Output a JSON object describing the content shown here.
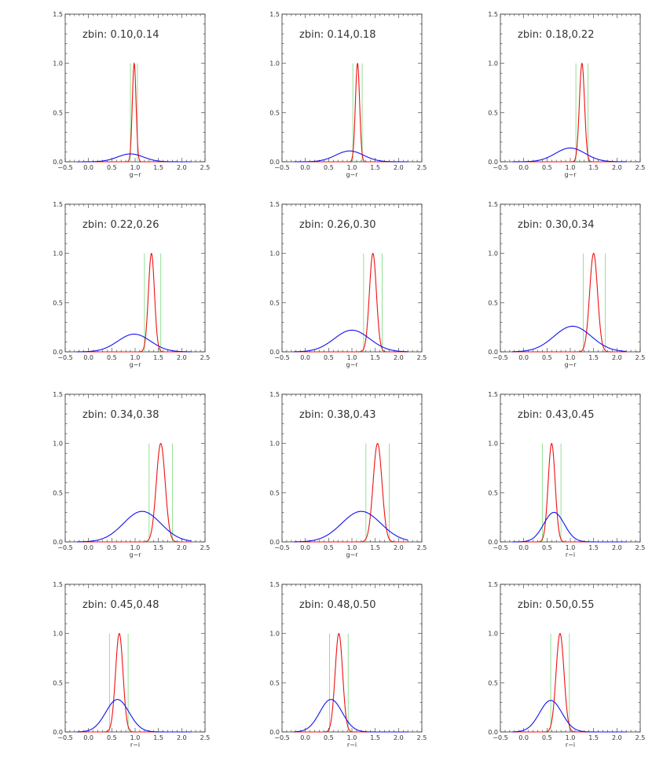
{
  "chart_data": [
    {
      "type": "line",
      "title": "zbin: 0.10,0.14",
      "xlabel": "g−r",
      "xlim": [
        -0.5,
        2.5
      ],
      "ylim": [
        0,
        1.5
      ],
      "x_ticks": [
        "−0.5",
        "0.0",
        "0.5",
        "1.0",
        "1.5",
        "2.0",
        "2.5"
      ],
      "y_ticks": [
        "0.0",
        "0.5",
        "1.0",
        "1.5"
      ],
      "series": [
        {
          "color": "#ee1111",
          "kind": "gaussian",
          "mean": 0.98,
          "sigma": 0.04,
          "peak": 1.0
        },
        {
          "color": "#1111ee",
          "kind": "gaussian",
          "mean": 0.9,
          "sigma": 0.28,
          "peak": 0.08
        }
      ],
      "vlines": {
        "color": "#88dd88",
        "x": [
          0.9,
          1.05
        ]
      }
    },
    {
      "type": "line",
      "title": "zbin: 0.14,0.18",
      "xlabel": "g−r",
      "xlim": [
        -0.5,
        2.5
      ],
      "ylim": [
        0,
        1.5
      ],
      "x_ticks": [
        "−0.5",
        "0.0",
        "0.5",
        "1.0",
        "1.5",
        "2.0",
        "2.5"
      ],
      "y_ticks": [
        "0.0",
        "0.5",
        "1.0",
        "1.5"
      ],
      "series": [
        {
          "color": "#ee1111",
          "kind": "gaussian",
          "mean": 1.12,
          "sigma": 0.045,
          "peak": 1.0
        },
        {
          "color": "#1111ee",
          "kind": "gaussian",
          "mean": 0.95,
          "sigma": 0.3,
          "peak": 0.11
        }
      ],
      "vlines": {
        "color": "#88dd88",
        "x": [
          1.02,
          1.22
        ]
      }
    },
    {
      "type": "line",
      "title": "zbin: 0.18,0.22",
      "xlabel": "g−r",
      "xlim": [
        -0.5,
        2.5
      ],
      "ylim": [
        0,
        1.5
      ],
      "x_ticks": [
        "−0.5",
        "0.0",
        "0.5",
        "1.0",
        "1.5",
        "2.0",
        "2.5"
      ],
      "y_ticks": [
        "0.0",
        "0.5",
        "1.0",
        "1.5"
      ],
      "series": [
        {
          "color": "#ee1111",
          "kind": "gaussian",
          "mean": 1.25,
          "sigma": 0.055,
          "peak": 1.0
        },
        {
          "color": "#1111ee",
          "kind": "gaussian",
          "mean": 1.0,
          "sigma": 0.32,
          "peak": 0.14
        }
      ],
      "vlines": {
        "color": "#88dd88",
        "x": [
          1.12,
          1.38
        ]
      }
    },
    {
      "type": "line",
      "title": "zbin: 0.22,0.26",
      "xlabel": "g−r",
      "xlim": [
        -0.5,
        2.5
      ],
      "ylim": [
        0,
        1.5
      ],
      "x_ticks": [
        "−0.5",
        "0.0",
        "0.5",
        "1.0",
        "1.5",
        "2.0",
        "2.5"
      ],
      "y_ticks": [
        "0.0",
        "0.5",
        "1.0",
        "1.5"
      ],
      "series": [
        {
          "color": "#ee1111",
          "kind": "gaussian",
          "mean": 1.35,
          "sigma": 0.065,
          "peak": 1.0
        },
        {
          "color": "#1111ee",
          "kind": "gaussian",
          "mean": 0.98,
          "sigma": 0.35,
          "peak": 0.18
        }
      ],
      "vlines": {
        "color": "#88dd88",
        "x": [
          1.2,
          1.55
        ]
      }
    },
    {
      "type": "line",
      "title": "zbin: 0.26,0.30",
      "xlabel": "g−r",
      "xlim": [
        -0.5,
        2.5
      ],
      "ylim": [
        0,
        1.5
      ],
      "x_ticks": [
        "−0.5",
        "0.0",
        "0.5",
        "1.0",
        "1.5",
        "2.0",
        "2.5"
      ],
      "y_ticks": [
        "0.0",
        "0.5",
        "1.0",
        "1.5"
      ],
      "series": [
        {
          "color": "#ee1111",
          "kind": "gaussian",
          "mean": 1.45,
          "sigma": 0.075,
          "peak": 1.0
        },
        {
          "color": "#1111ee",
          "kind": "gaussian",
          "mean": 1.0,
          "sigma": 0.38,
          "peak": 0.22
        }
      ],
      "vlines": {
        "color": "#88dd88",
        "x": [
          1.25,
          1.65
        ]
      }
    },
    {
      "type": "line",
      "title": "zbin: 0.30,0.34",
      "xlabel": "g−r",
      "xlim": [
        -0.5,
        2.5
      ],
      "ylim": [
        0,
        1.5
      ],
      "x_ticks": [
        "−0.5",
        "0.0",
        "0.5",
        "1.0",
        "1.5",
        "2.0",
        "2.5"
      ],
      "y_ticks": [
        "0.0",
        "0.5",
        "1.0",
        "1.5"
      ],
      "series": [
        {
          "color": "#ee1111",
          "kind": "gaussian",
          "mean": 1.5,
          "sigma": 0.085,
          "peak": 1.0
        },
        {
          "color": "#1111ee",
          "kind": "gaussian",
          "mean": 1.05,
          "sigma": 0.4,
          "peak": 0.26
        }
      ],
      "vlines": {
        "color": "#88dd88",
        "x": [
          1.28,
          1.75
        ]
      }
    },
    {
      "type": "line",
      "title": "zbin: 0.34,0.38",
      "xlabel": "g−r",
      "xlim": [
        -0.5,
        2.5
      ],
      "ylim": [
        0,
        1.5
      ],
      "x_ticks": [
        "−0.5",
        "0.0",
        "0.5",
        "1.0",
        "1.5",
        "2.0",
        "2.5"
      ],
      "y_ticks": [
        "0.0",
        "0.5",
        "1.0",
        "1.5"
      ],
      "series": [
        {
          "color": "#ee1111",
          "kind": "gaussian",
          "mean": 1.55,
          "sigma": 0.095,
          "peak": 1.0
        },
        {
          "color": "#1111ee",
          "kind": "gaussian",
          "mean": 1.15,
          "sigma": 0.4,
          "peak": 0.31
        }
      ],
      "vlines": {
        "color": "#88dd88",
        "x": [
          1.3,
          1.8
        ]
      }
    },
    {
      "type": "line",
      "title": "zbin: 0.38,0.43",
      "xlabel": "g−r",
      "xlim": [
        -0.5,
        2.5
      ],
      "ylim": [
        0,
        1.5
      ],
      "x_ticks": [
        "−0.5",
        "0.0",
        "0.5",
        "1.0",
        "1.5",
        "2.0",
        "2.5"
      ],
      "y_ticks": [
        "0.0",
        "0.5",
        "1.0",
        "1.5"
      ],
      "series": [
        {
          "color": "#ee1111",
          "kind": "gaussian",
          "mean": 1.55,
          "sigma": 0.095,
          "peak": 1.0
        },
        {
          "color": "#1111ee",
          "kind": "gaussian",
          "mean": 1.2,
          "sigma": 0.42,
          "peak": 0.31
        }
      ],
      "vlines": {
        "color": "#88dd88",
        "x": [
          1.3,
          1.8
        ]
      }
    },
    {
      "type": "line",
      "title": "zbin: 0.43,0.45",
      "xlabel": "r−i",
      "xlim": [
        -0.5,
        2.5
      ],
      "ylim": [
        0,
        1.5
      ],
      "x_ticks": [
        "−0.5",
        "0.0",
        "0.5",
        "1.0",
        "1.5",
        "2.0",
        "2.5"
      ],
      "y_ticks": [
        "0.0",
        "0.5",
        "1.0",
        "1.5"
      ],
      "series": [
        {
          "color": "#ee1111",
          "kind": "gaussian",
          "mean": 0.6,
          "sigma": 0.075,
          "peak": 1.0
        },
        {
          "color": "#1111ee",
          "kind": "gaussian",
          "mean": 0.65,
          "sigma": 0.22,
          "peak": 0.3
        }
      ],
      "vlines": {
        "color": "#88dd88",
        "x": [
          0.4,
          0.8
        ]
      }
    },
    {
      "type": "line",
      "title": "zbin: 0.45,0.48",
      "xlabel": "r−i",
      "xlim": [
        -0.5,
        2.5
      ],
      "ylim": [
        0,
        1.5
      ],
      "x_ticks": [
        "−0.5",
        "0.0",
        "0.5",
        "1.0",
        "1.5",
        "2.0",
        "2.5"
      ],
      "y_ticks": [
        "0.0",
        "0.5",
        "1.0",
        "1.5"
      ],
      "series": [
        {
          "color": "#ee1111",
          "kind": "gaussian",
          "mean": 0.66,
          "sigma": 0.08,
          "peak": 1.0
        },
        {
          "color": "#1111ee",
          "kind": "gaussian",
          "mean": 0.62,
          "sigma": 0.25,
          "peak": 0.33
        }
      ],
      "vlines": {
        "color": "#88dd88",
        "x": [
          0.45,
          0.85
        ]
      }
    },
    {
      "type": "line",
      "title": "zbin: 0.48,0.50",
      "xlabel": "r−i",
      "xlim": [
        -0.5,
        2.5
      ],
      "ylim": [
        0,
        1.5
      ],
      "x_ticks": [
        "−0.5",
        "0.0",
        "0.5",
        "1.0",
        "1.5",
        "2.0",
        "2.5"
      ],
      "y_ticks": [
        "0.0",
        "0.5",
        "1.0",
        "1.5"
      ],
      "series": [
        {
          "color": "#ee1111",
          "kind": "gaussian",
          "mean": 0.72,
          "sigma": 0.08,
          "peak": 1.0
        },
        {
          "color": "#1111ee",
          "kind": "gaussian",
          "mean": 0.55,
          "sigma": 0.24,
          "peak": 0.33
        }
      ],
      "vlines": {
        "color": "#88dd88",
        "x": [
          0.52,
          0.92
        ]
      }
    },
    {
      "type": "line",
      "title": "zbin: 0.50,0.55",
      "xlabel": "r−i",
      "xlim": [
        -0.5,
        2.5
      ],
      "ylim": [
        0,
        1.5
      ],
      "x_ticks": [
        "−0.5",
        "0.0",
        "0.5",
        "1.0",
        "1.5",
        "2.0",
        "2.5"
      ],
      "y_ticks": [
        "0.0",
        "0.5",
        "1.0",
        "1.5"
      ],
      "series": [
        {
          "color": "#ee1111",
          "kind": "gaussian",
          "mean": 0.78,
          "sigma": 0.085,
          "peak": 1.0
        },
        {
          "color": "#1111ee",
          "kind": "gaussian",
          "mean": 0.58,
          "sigma": 0.24,
          "peak": 0.32
        }
      ],
      "vlines": {
        "color": "#88dd88",
        "x": [
          0.58,
          0.98
        ]
      }
    }
  ]
}
